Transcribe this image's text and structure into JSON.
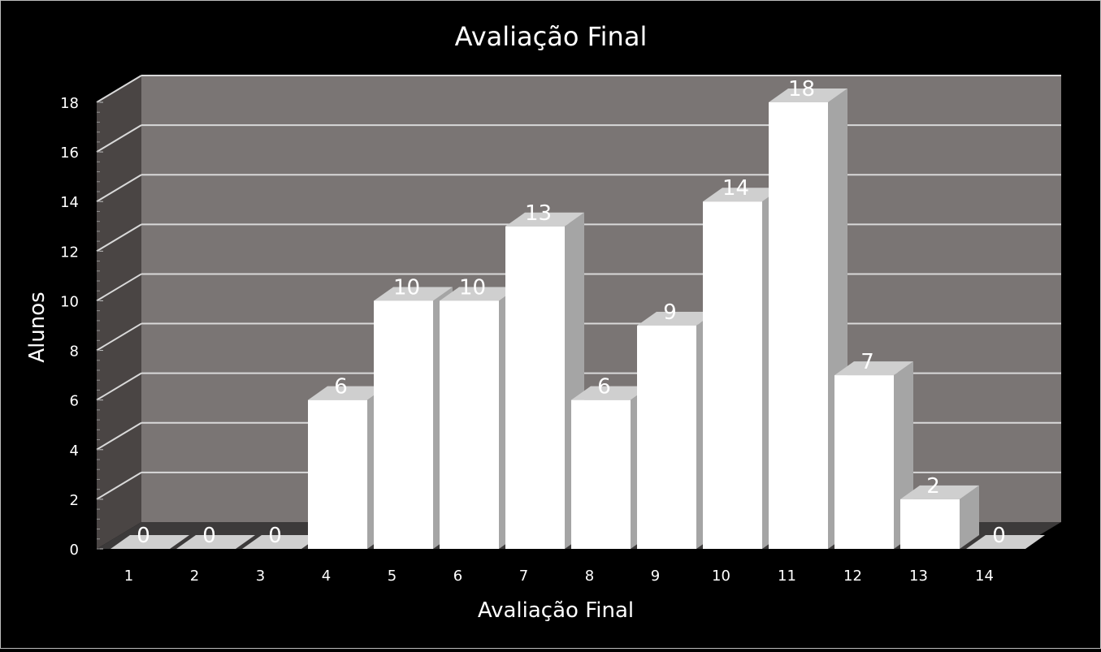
{
  "chart_data": {
    "type": "bar",
    "title": "Avaliação Final",
    "xlabel": "Avaliação Final",
    "ylabel": "Alunos",
    "categories": [
      "1",
      "2",
      "3",
      "4",
      "5",
      "6",
      "7",
      "8",
      "9",
      "10",
      "11",
      "12",
      "13",
      "14"
    ],
    "values": [
      0,
      0,
      0,
      6,
      10,
      10,
      13,
      6,
      9,
      14,
      18,
      7,
      2,
      0
    ],
    "ylim": [
      0,
      18
    ],
    "yticks": [
      "0",
      "2",
      "4",
      "6",
      "8",
      "10",
      "12",
      "14",
      "16",
      "18"
    ],
    "grid": true,
    "style": "3d-column",
    "colors": {
      "background": "#000000",
      "back_wall": "#7a7574",
      "side_wall": "#4a4544",
      "floor": "#3c3a3a",
      "bar_front": "#ffffff",
      "bar_side": "#a5a5a5",
      "bar_top": "#cfcfcf",
      "gridline": "#d9d9d9",
      "text": "#ffffff"
    }
  }
}
